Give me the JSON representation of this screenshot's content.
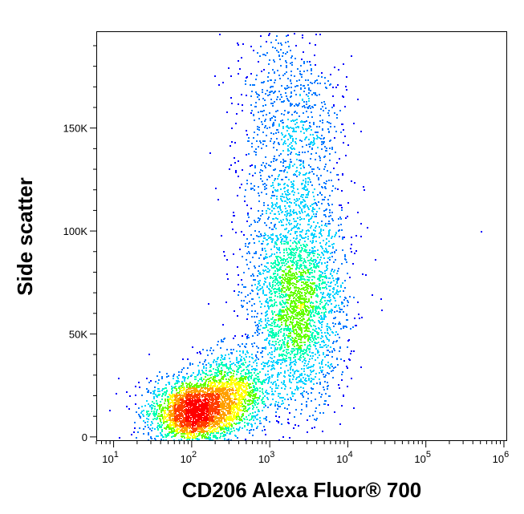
{
  "chart_data": {
    "type": "scatter",
    "style": "density flow-cytometry dot plot",
    "xlabel": "CD206 Alexa Fluor® 700",
    "ylabel": "Side scatter",
    "x_scale": "log",
    "xlim": [
      6,
      1100000
    ],
    "ylim": [
      -2000,
      197000
    ],
    "x_ticks": [
      {
        "base": "10",
        "exp": "1",
        "value": 10
      },
      {
        "base": "10",
        "exp": "2",
        "value": 100
      },
      {
        "base": "10",
        "exp": "3",
        "value": 1000
      },
      {
        "base": "10",
        "exp": "4",
        "value": 10000
      },
      {
        "base": "10",
        "exp": "5",
        "value": 100000
      },
      {
        "base": "10",
        "exp": "6",
        "value": 1000000
      }
    ],
    "y_ticks": [
      {
        "label": "0",
        "value": 0
      },
      {
        "label": "50K",
        "value": 50000
      },
      {
        "label": "100K",
        "value": 100000
      },
      {
        "label": "150K",
        "value": 150000
      }
    ],
    "grid": false,
    "legend": "none",
    "density_colors": [
      "#0000ff",
      "#0078ff",
      "#00d2ff",
      "#00ffb4",
      "#64ff00",
      "#ffff00",
      "#ffa000",
      "#ff3c00",
      "#ff0000"
    ],
    "populations": [
      {
        "log10_x_center": 2.0,
        "y_center": 12000,
        "log10_x_sd": 0.28,
        "y_sd": 8000,
        "count": 2400
      },
      {
        "log10_x_center": 2.5,
        "y_center": 22000,
        "log10_x_sd": 0.25,
        "y_sd": 10000,
        "count": 1200
      },
      {
        "log10_x_center": 3.35,
        "y_center": 60000,
        "log10_x_sd": 0.3,
        "y_sd": 22000,
        "count": 2200
      },
      {
        "log10_x_center": 3.3,
        "y_center": 110000,
        "log10_x_sd": 0.33,
        "y_sd": 30000,
        "count": 1100
      },
      {
        "log10_x_center": 3.2,
        "y_center": 165000,
        "log10_x_sd": 0.35,
        "y_sd": 20000,
        "count": 450
      }
    ],
    "outliers": [
      {
        "x": 500000,
        "y": 100000
      }
    ]
  }
}
